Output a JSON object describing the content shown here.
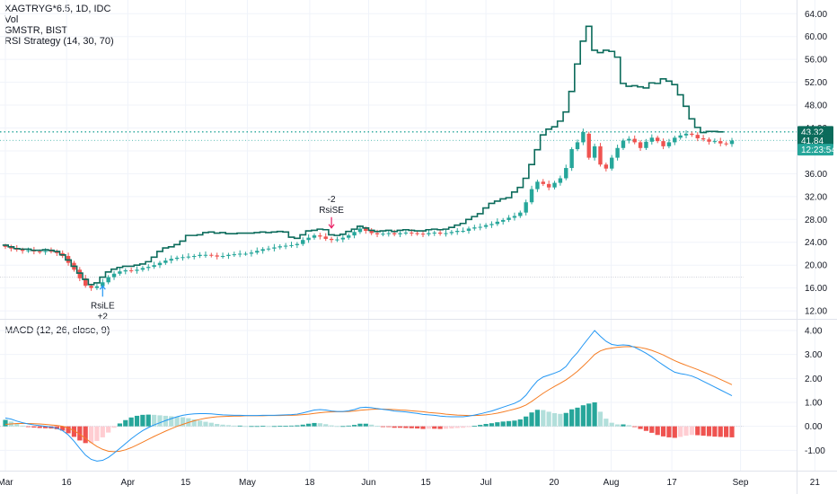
{
  "legend": {
    "main_title": "XAGTRYG*6.5, 1D, IDC",
    "vol": "Vol",
    "compare": "GMSTR, BIST",
    "strategy": "RSI Strategy (14, 30, 70)",
    "macd": "MACD (12, 26, close, 9)"
  },
  "colors": {
    "up": "#26a69a",
    "down": "#ef5350",
    "compare_line": "#0b6b5b",
    "macd_line": "#2196f3",
    "signal_line": "#f57c22",
    "hist_up_strong": "#26a69a",
    "hist_up_weak": "#b2dfdb",
    "hist_down_strong": "#ef5350",
    "hist_down_weak": "#ffcdd2",
    "grid": "#f0f3fa"
  },
  "price_axis": {
    "ticks": [
      "64.00",
      "60.00",
      "56.00",
      "52.00",
      "48.00",
      "44.00",
      "40.00",
      "36.00",
      "32.00",
      "28.00",
      "24.00",
      "20.00",
      "16.00",
      "12.00"
    ],
    "tick_values": [
      64,
      60,
      56,
      52,
      48,
      44,
      40,
      36,
      32,
      28,
      24,
      20,
      16,
      12
    ],
    "range": [
      10.6,
      66.4
    ],
    "badges": [
      {
        "label": "43.32",
        "value": 43.32
      },
      {
        "label": "41.84",
        "value": 41.84
      },
      {
        "label": "12:23:54",
        "value": 40.2
      }
    ],
    "ref_lines": [
      43.32,
      41.84,
      17.9
    ]
  },
  "macd_axis": {
    "ticks": [
      "4.00",
      "3.00",
      "2.00",
      "1.00",
      "0.00",
      "-1.00"
    ],
    "tick_values": [
      4,
      3,
      2,
      1,
      0,
      -1
    ],
    "range": [
      -1.85,
      4.45
    ]
  },
  "time_axis": {
    "labels": [
      "Mar",
      "16",
      "Apr",
      "15",
      "May",
      "18",
      "Jun",
      "15",
      "Jul",
      "20",
      "Aug",
      "17",
      "Sep",
      "21"
    ],
    "positions": [
      0,
      10.7,
      21.4,
      31.5,
      42.3,
      53.2,
      63.5,
      73.5,
      84,
      95.9,
      105.9,
      116.5,
      128.5,
      141.5
    ]
  },
  "signals": [
    {
      "label": "RsiLE",
      "qty": "+2",
      "t": 17,
      "price": 17.0,
      "side": "long"
    },
    {
      "label": "RsiSE",
      "qty": "-2",
      "t": 57,
      "price": 26.2,
      "side": "short"
    }
  ],
  "chart_data": {
    "type": "line",
    "x_unit": "trading-day index",
    "series": [
      {
        "name": "XAGTRYG*6.5",
        "type": "candlestick",
        "close": [
          23.2,
          22.9,
          22.7,
          22.5,
          22.6,
          22.4,
          22.3,
          22.5,
          22.4,
          22.1,
          21.6,
          20.4,
          19.2,
          17.7,
          16.4,
          16.0,
          16.3,
          17.0,
          17.9,
          18.5,
          18.9,
          19.1,
          19.0,
          19.2,
          19.5,
          19.7,
          20.0,
          20.4,
          20.8,
          21.1,
          21.3,
          21.4,
          21.5,
          21.6,
          21.8,
          21.8,
          21.7,
          21.5,
          21.6,
          21.8,
          21.9,
          22.0,
          22.0,
          22.2,
          22.5,
          22.8,
          22.9,
          23.1,
          23.3,
          23.4,
          23.5,
          23.7,
          24.4,
          24.8,
          25.2,
          25.0,
          24.6,
          24.4,
          24.5,
          24.8,
          25.2,
          25.8,
          26.4,
          26.0,
          25.6,
          25.4,
          25.5,
          25.6,
          25.4,
          25.6,
          25.7,
          25.6,
          25.5,
          25.4,
          25.6,
          25.7,
          25.5,
          25.6,
          25.8,
          26.0,
          26.0,
          26.4,
          26.6,
          26.7,
          27.0,
          27.2,
          27.6,
          27.9,
          28.3,
          28.6,
          29.2,
          31.0,
          33.3,
          34.6,
          34.2,
          33.6,
          34.4,
          35.2,
          37.0,
          40.3,
          41.5,
          43.3,
          38.8,
          40.8,
          37.6,
          36.9,
          38.8,
          40.5,
          41.8,
          42.1,
          41.5,
          40.5,
          41.6,
          42.3,
          41.7,
          40.8,
          41.5,
          42.3,
          42.7,
          43.0,
          42.8,
          42.2,
          42.0,
          41.6,
          41.7,
          41.3,
          41.2,
          41.8
        ],
        "open": [
          23.4,
          23.1,
          22.9,
          22.7,
          22.5,
          22.6,
          22.4,
          22.3,
          22.5,
          22.4,
          22.1,
          21.6,
          20.4,
          19.2,
          17.7,
          16.4,
          16.0,
          16.3,
          17.0,
          17.9,
          18.5,
          18.9,
          19.1,
          19.0,
          19.2,
          19.5,
          19.7,
          20.0,
          20.4,
          20.8,
          21.1,
          21.3,
          21.4,
          21.5,
          21.6,
          21.8,
          21.8,
          21.7,
          21.5,
          21.6,
          21.8,
          21.9,
          22.0,
          22.0,
          22.2,
          22.5,
          22.8,
          22.9,
          23.1,
          23.3,
          23.4,
          23.5,
          23.7,
          24.4,
          24.8,
          25.2,
          25.0,
          24.6,
          24.4,
          24.5,
          24.8,
          25.2,
          25.8,
          26.4,
          26.0,
          25.6,
          25.4,
          25.5,
          25.6,
          25.4,
          25.6,
          25.7,
          25.6,
          25.5,
          25.4,
          25.6,
          25.7,
          25.5,
          25.6,
          25.8,
          26.0,
          26.0,
          26.4,
          26.6,
          26.7,
          27.0,
          27.2,
          27.6,
          27.9,
          28.3,
          28.6,
          29.2,
          31.0,
          33.3,
          34.6,
          34.2,
          33.6,
          34.4,
          35.2,
          37.0,
          40.3,
          41.5,
          43.0,
          38.8,
          40.8,
          37.6,
          36.9,
          38.8,
          40.5,
          41.8,
          42.1,
          41.5,
          40.5,
          41.6,
          42.3,
          41.7,
          40.8,
          41.5,
          42.3,
          42.7,
          43.0,
          42.8,
          42.2,
          42.0,
          41.6,
          41.7,
          41.3,
          41.2
        ]
      },
      {
        "name": "GMSTR, BIST",
        "type": "step",
        "values": [
          23.5,
          23.2,
          22.9,
          22.8,
          22.8,
          22.6,
          22.6,
          22.7,
          22.6,
          22.4,
          21.8,
          20.9,
          19.8,
          18.6,
          17.5,
          16.6,
          16.9,
          17.9,
          18.8,
          19.3,
          19.6,
          19.8,
          19.8,
          20.0,
          20.2,
          20.6,
          21.4,
          22.4,
          23.0,
          23.2,
          23.6,
          24.2,
          25.2,
          25.2,
          25.3,
          25.7,
          25.8,
          25.6,
          25.7,
          25.5,
          25.5,
          25.6,
          25.6,
          25.6,
          25.7,
          25.8,
          25.7,
          25.8,
          25.9,
          25.8,
          24.9,
          24.7,
          25.3,
          26.0,
          26.1,
          26.3,
          26.2,
          25.3,
          25.2,
          25.4,
          25.9,
          26.3,
          26.8,
          26.5,
          26.1,
          25.9,
          26.0,
          26.1,
          25.9,
          26.1,
          26.2,
          26.1,
          26.0,
          26.0,
          26.2,
          26.3,
          26.2,
          26.3,
          26.6,
          27.0,
          27.3,
          28.0,
          28.5,
          29.0,
          30.0,
          30.8,
          31.2,
          31.6,
          31.8,
          32.8,
          33.6,
          35.2,
          37.6,
          40.2,
          42.8,
          43.8,
          44.2,
          45.2,
          46.8,
          50.4,
          55.2,
          59.2,
          61.8,
          57.6,
          57.2,
          57.6,
          57.4,
          56.4,
          51.8,
          51.3,
          51.4,
          51.2,
          51.0,
          51.9,
          51.8,
          52.6,
          52.2,
          51.6,
          49.8,
          47.8,
          45.6,
          44.1,
          43.2,
          43.4,
          43.4,
          43.32
        ]
      },
      {
        "name": "MACD",
        "type": "line",
        "values": [
          0.35,
          0.3,
          0.22,
          0.15,
          0.1,
          0.06,
          0.03,
          0.0,
          -0.03,
          -0.08,
          -0.18,
          -0.36,
          -0.62,
          -0.92,
          -1.2,
          -1.38,
          -1.45,
          -1.42,
          -1.3,
          -1.12,
          -0.92,
          -0.72,
          -0.52,
          -0.34,
          -0.18,
          -0.05,
          0.06,
          0.15,
          0.24,
          0.32,
          0.4,
          0.46,
          0.5,
          0.52,
          0.53,
          0.53,
          0.52,
          0.5,
          0.48,
          0.47,
          0.46,
          0.46,
          0.45,
          0.45,
          0.45,
          0.46,
          0.46,
          0.46,
          0.47,
          0.48,
          0.49,
          0.51,
          0.56,
          0.62,
          0.68,
          0.7,
          0.68,
          0.64,
          0.62,
          0.62,
          0.65,
          0.7,
          0.78,
          0.8,
          0.78,
          0.74,
          0.71,
          0.68,
          0.64,
          0.62,
          0.6,
          0.57,
          0.54,
          0.5,
          0.48,
          0.46,
          0.43,
          0.41,
          0.4,
          0.4,
          0.4,
          0.43,
          0.47,
          0.52,
          0.58,
          0.64,
          0.72,
          0.8,
          0.88,
          0.96,
          1.08,
          1.3,
          1.62,
          1.9,
          2.06,
          2.14,
          2.22,
          2.32,
          2.5,
          2.82,
          3.08,
          3.4,
          3.7,
          4.0,
          3.76,
          3.55,
          3.42,
          3.38,
          3.4,
          3.38,
          3.3,
          3.18,
          3.05,
          2.9,
          2.72,
          2.56,
          2.4,
          2.26,
          2.2,
          2.16,
          2.1,
          2.0,
          1.88,
          1.76,
          1.64,
          1.52,
          1.4,
          1.28
        ]
      },
      {
        "name": "Signal",
        "type": "line",
        "values": [
          0.08,
          0.1,
          0.12,
          0.12,
          0.12,
          0.11,
          0.1,
          0.08,
          0.06,
          0.04,
          0.0,
          -0.07,
          -0.18,
          -0.33,
          -0.5,
          -0.68,
          -0.84,
          -0.96,
          -1.04,
          -1.06,
          -1.04,
          -0.98,
          -0.89,
          -0.78,
          -0.66,
          -0.54,
          -0.42,
          -0.31,
          -0.2,
          -0.1,
          -0.0,
          0.08,
          0.16,
          0.23,
          0.29,
          0.34,
          0.37,
          0.4,
          0.41,
          0.42,
          0.43,
          0.43,
          0.44,
          0.44,
          0.44,
          0.44,
          0.45,
          0.45,
          0.45,
          0.46,
          0.46,
          0.47,
          0.49,
          0.51,
          0.54,
          0.57,
          0.59,
          0.6,
          0.61,
          0.61,
          0.62,
          0.64,
          0.67,
          0.69,
          0.71,
          0.72,
          0.72,
          0.71,
          0.7,
          0.68,
          0.67,
          0.65,
          0.63,
          0.61,
          0.58,
          0.56,
          0.54,
          0.51,
          0.49,
          0.47,
          0.46,
          0.45,
          0.45,
          0.46,
          0.48,
          0.51,
          0.55,
          0.6,
          0.66,
          0.72,
          0.79,
          0.89,
          1.04,
          1.21,
          1.38,
          1.53,
          1.67,
          1.8,
          1.94,
          2.11,
          2.3,
          2.52,
          2.75,
          3.0,
          3.15,
          3.23,
          3.27,
          3.3,
          3.32,
          3.33,
          3.32,
          3.29,
          3.24,
          3.17,
          3.08,
          2.98,
          2.86,
          2.74,
          2.64,
          2.55,
          2.46,
          2.37,
          2.27,
          2.17,
          2.07,
          1.96,
          1.85,
          1.74
        ]
      }
    ],
    "ylim_price": [
      10.6,
      66.4
    ],
    "ylim_macd": [
      -1.85,
      4.45
    ]
  }
}
